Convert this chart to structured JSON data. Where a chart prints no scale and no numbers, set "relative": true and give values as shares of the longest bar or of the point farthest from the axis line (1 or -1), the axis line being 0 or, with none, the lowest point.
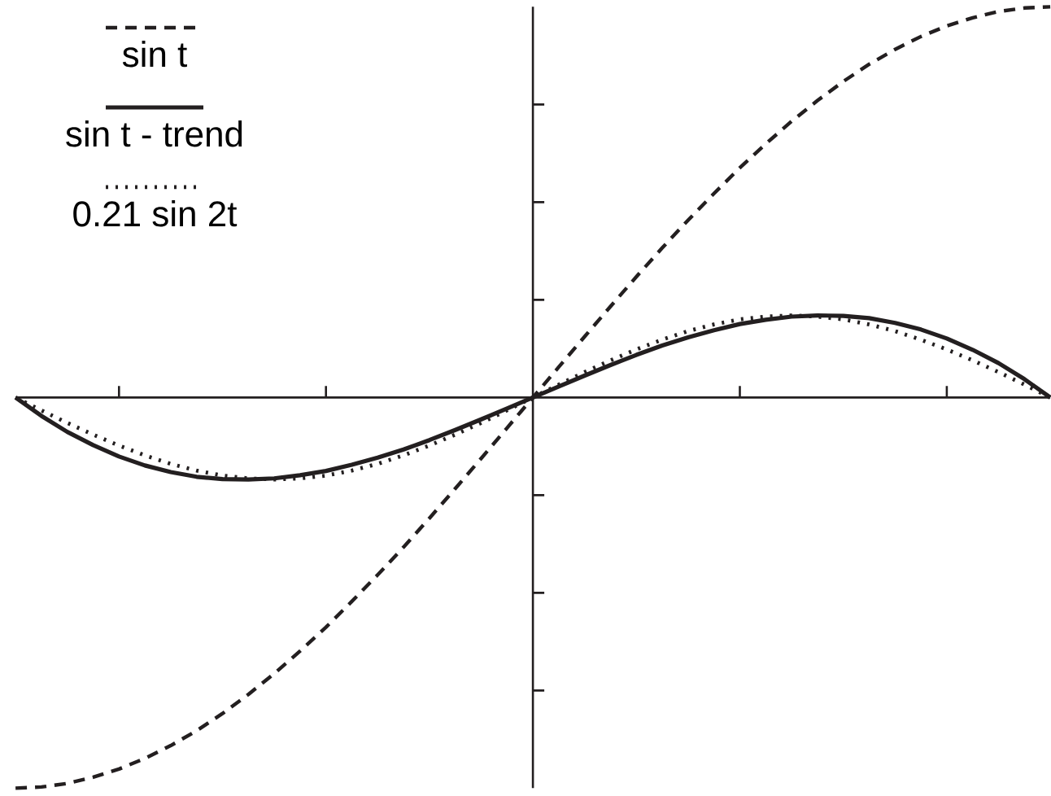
{
  "chart_data": {
    "type": "line",
    "relative": true,
    "legend": "top left",
    "categories": [
      null,
      null,
      null,
      null,
      null,
      null,
      null,
      null,
      null,
      null,
      null,
      null,
      null,
      null,
      null,
      null,
      null,
      null,
      null,
      null,
      null,
      null,
      null,
      null,
      null,
      null,
      null,
      null,
      null,
      null,
      null,
      null,
      null,
      null,
      null,
      null,
      null,
      null,
      null,
      null,
      null
    ],
    "series": [
      {
        "name": "sin t",
        "color": "#231f20",
        "line_style": "dashed",
        "values": [
          -1,
          -0.997,
          -0.988,
          -0.972,
          -0.951,
          -0.924,
          -0.891,
          -0.853,
          -0.809,
          -0.76,
          -0.707,
          -0.649,
          -0.588,
          -0.522,
          -0.454,
          -0.383,
          -0.309,
          -0.233,
          -0.156,
          -0.078,
          0,
          0.078,
          0.156,
          0.233,
          0.309,
          0.383,
          0.454,
          0.522,
          0.588,
          0.649,
          0.707,
          0.76,
          0.809,
          0.853,
          0.891,
          0.924,
          0.951,
          0.972,
          0.988,
          0.997,
          1
        ]
      },
      {
        "name": "sin t - trend",
        "color": "#231f20",
        "line_style": "solid",
        "values": [
          0,
          -0.047,
          -0.088,
          -0.122,
          -0.151,
          -0.174,
          -0.191,
          -0.203,
          -0.209,
          -0.21,
          -0.207,
          -0.199,
          -0.188,
          -0.172,
          -0.154,
          -0.133,
          -0.109,
          -0.083,
          -0.056,
          -0.028,
          0,
          0.028,
          0.056,
          0.083,
          0.109,
          0.133,
          0.154,
          0.172,
          0.188,
          0.199,
          0.207,
          0.21,
          0.209,
          0.203,
          0.191,
          0.174,
          0.151,
          0.122,
          0.088,
          0.047,
          0
        ]
      },
      {
        "name": "0.21 sin 2t",
        "color": "#231f20",
        "line_style": "dotted",
        "values": [
          0,
          -0.033,
          -0.065,
          -0.095,
          -0.123,
          -0.148,
          -0.17,
          -0.187,
          -0.2,
          -0.207,
          -0.21,
          -0.207,
          -0.2,
          -0.187,
          -0.17,
          -0.148,
          -0.123,
          -0.095,
          -0.065,
          -0.033,
          0,
          0.033,
          0.065,
          0.095,
          0.123,
          0.148,
          0.17,
          0.187,
          0.2,
          0.207,
          0.21,
          0.207,
          0.2,
          0.187,
          0.17,
          0.148,
          0.123,
          0.095,
          0.065,
          0.033,
          0
        ]
      }
    ]
  }
}
